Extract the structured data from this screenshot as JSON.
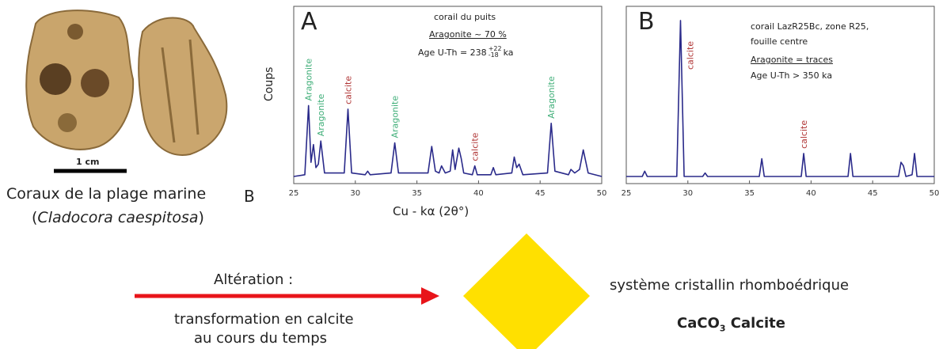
{
  "photo": {
    "scale": "1 cm",
    "caption": "Coraux de la plage marine",
    "marker": "B",
    "species_open": "(",
    "species": "Cladocora caespitosa",
    "species_close": ")"
  },
  "chart_data": [
    {
      "type": "line",
      "panel": "A",
      "ylabel": "Coups",
      "xlabel": "Cu - kα (2θ°)",
      "notes": [
        "corail du puits",
        "Aragonite ~ 70 %"
      ],
      "age": {
        "prefix": "Age U-Th =  238",
        "sup": "+22",
        "sub": "-18",
        "suffix": "ka"
      },
      "color": "#2a2a8a",
      "x": [
        25,
        25.9,
        26.2,
        26.4,
        26.6,
        26.8,
        27.0,
        27.2,
        27.5,
        29.1,
        29.4,
        29.7,
        30.8,
        31,
        31.2,
        32.9,
        33.2,
        33.5,
        35.9,
        36.2,
        36.5,
        36.8,
        37,
        37.3,
        37.7,
        37.9,
        38.1,
        38.4,
        38.6,
        38.8,
        39.5,
        39.7,
        39.9,
        41,
        41.2,
        41.4,
        42.7,
        42.9,
        43.1,
        43.3,
        43.6,
        45.6,
        45.9,
        46.2,
        47.3,
        47.5,
        47.8,
        48.2,
        48.5,
        48.9,
        50
      ],
      "values": [
        4,
        5,
        44,
        12,
        22,
        9,
        11,
        24,
        6,
        6,
        42,
        6,
        5,
        7,
        5,
        6,
        23,
        6,
        6,
        21,
        7,
        6,
        10,
        6,
        7,
        19,
        8,
        20,
        14,
        6,
        5,
        10,
        5,
        5,
        9,
        5,
        6,
        15,
        9,
        11,
        5,
        6,
        34,
        7,
        5,
        8,
        6,
        8,
        19,
        6,
        4
      ],
      "annotations": [
        {
          "text": "Aragonite",
          "x": 26.2,
          "color": "#3fae78"
        },
        {
          "text": "Aragonite",
          "x": 27.2,
          "color": "#3fae78"
        },
        {
          "text": "calcite",
          "x": 29.4,
          "color": "#b03535"
        },
        {
          "text": "Aragonite",
          "x": 33.2,
          "color": "#3fae78"
        },
        {
          "text": "calcite",
          "x": 39.7,
          "color": "#b03535"
        },
        {
          "text": "Aragonite",
          "x": 45.9,
          "color": "#3fae78"
        }
      ],
      "xlim": [
        25,
        50
      ],
      "xticks": [
        25,
        30,
        35,
        40,
        45,
        50
      ],
      "ylim": [
        0,
        100
      ]
    },
    {
      "type": "line",
      "panel": "B",
      "notes": [
        "corail LazR25Bc, zone R25,",
        "fouille centre",
        "Aragonite = traces",
        "Age U-Th > 350 ka"
      ],
      "color": "#2a2a8a",
      "x": [
        25,
        26.3,
        26.5,
        26.7,
        29.1,
        29.4,
        29.7,
        31.2,
        31.4,
        31.6,
        35.8,
        36,
        36.2,
        39.2,
        39.4,
        39.6,
        43,
        43.2,
        43.4,
        47.1,
        47.3,
        47.5,
        47.7,
        48.2,
        48.4,
        48.6,
        50
      ],
      "values": [
        4,
        4,
        7,
        4,
        4,
        92,
        4,
        4,
        6,
        4,
        4,
        14,
        4,
        4,
        17,
        4,
        4,
        17,
        4,
        4,
        12,
        10,
        4,
        5,
        17,
        4,
        4
      ],
      "annotations": [
        {
          "text": "calcite",
          "x": 29.4,
          "color": "#b03535"
        },
        {
          "text": "calcite",
          "x": 39.4,
          "color": "#b03535"
        }
      ],
      "xlim": [
        25,
        50
      ],
      "xticks": [
        25,
        30,
        35,
        40,
        45,
        50
      ],
      "ylim": [
        0,
        100
      ]
    }
  ],
  "diagram": {
    "arrow_top": "Altération :",
    "arrow_bottom_1": "transformation en calcite",
    "arrow_bottom_2": "au cours du temps",
    "system": "système cristallin rhomboédrique",
    "formula_main": "CaCO",
    "formula_sub": "3",
    "formula_rest": " Calcite"
  }
}
